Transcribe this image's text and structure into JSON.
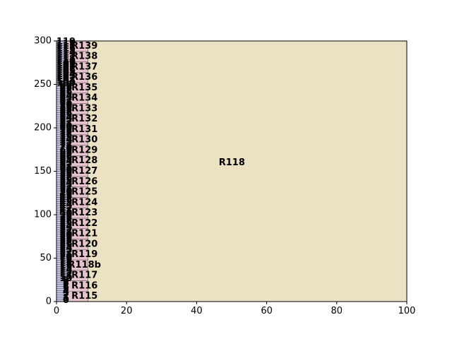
{
  "chart_data": {
    "type": "treemap",
    "xlim": [
      0,
      100
    ],
    "ylim": [
      0,
      300
    ],
    "x_ticks": [
      "0",
      "20",
      "40",
      "60",
      "80",
      "100"
    ],
    "y_ticks": [
      "0",
      "50",
      "100",
      "150",
      "200",
      "250",
      "300"
    ],
    "grid": false,
    "colors": {
      "col_a": "#c3c3e6",
      "col_b": "#e6c3cd",
      "big": "#ebe2c4",
      "edge": "#555555"
    },
    "columns": [
      {
        "group": "col_a",
        "x": [
          0,
          3
        ],
        "labels": [
          "0",
          "1",
          "2",
          "3",
          "4",
          "5",
          "6",
          "7",
          "8",
          "9",
          "10",
          "11",
          "12",
          "13",
          "14",
          "15",
          "16",
          "17",
          "18",
          "19",
          "20",
          "21",
          "22",
          "23",
          "24",
          "25",
          "26",
          "27",
          "28",
          "29",
          "30",
          "31",
          "32",
          "33",
          "34",
          "35",
          "36",
          "37",
          "38",
          "39",
          "40",
          "41",
          "42",
          "43",
          "44",
          "45",
          "46",
          "47",
          "48",
          "49",
          "50",
          "51",
          "52",
          "53",
          "54",
          "55",
          "56",
          "57",
          "58",
          "59",
          "60",
          "61",
          "62",
          "63",
          "64",
          "65",
          "66",
          "67",
          "68",
          "69",
          "70",
          "71",
          "72",
          "73",
          "74",
          "75",
          "76",
          "77",
          "78",
          "79",
          "80",
          "81",
          "82",
          "83",
          "84",
          "85",
          "86",
          "87",
          "88",
          "89",
          "90",
          "91",
          "92",
          "93",
          "94",
          "95",
          "96",
          "97",
          "98",
          "99",
          "100",
          "101",
          "102",
          "103",
          "104",
          "105",
          "106",
          "107",
          "108",
          "109",
          "110",
          "111",
          "112",
          "113",
          "114",
          "115",
          "116",
          "117",
          "118",
          "119"
        ]
      },
      {
        "group": "col_b",
        "x": [
          3,
          9
        ],
        "labels": [
          "R115",
          "R116",
          "R117",
          "R118b",
          "R119",
          "R120",
          "R121",
          "R122",
          "R123",
          "R124",
          "R125",
          "R126",
          "R127",
          "R128",
          "R129",
          "R130",
          "R131",
          "R132",
          "R133",
          "R134",
          "R135",
          "R136",
          "R137",
          "R138",
          "R139"
        ]
      }
    ],
    "big_cell": {
      "label": "R118",
      "x": [
        9,
        100
      ],
      "y": [
        0,
        300
      ]
    }
  }
}
